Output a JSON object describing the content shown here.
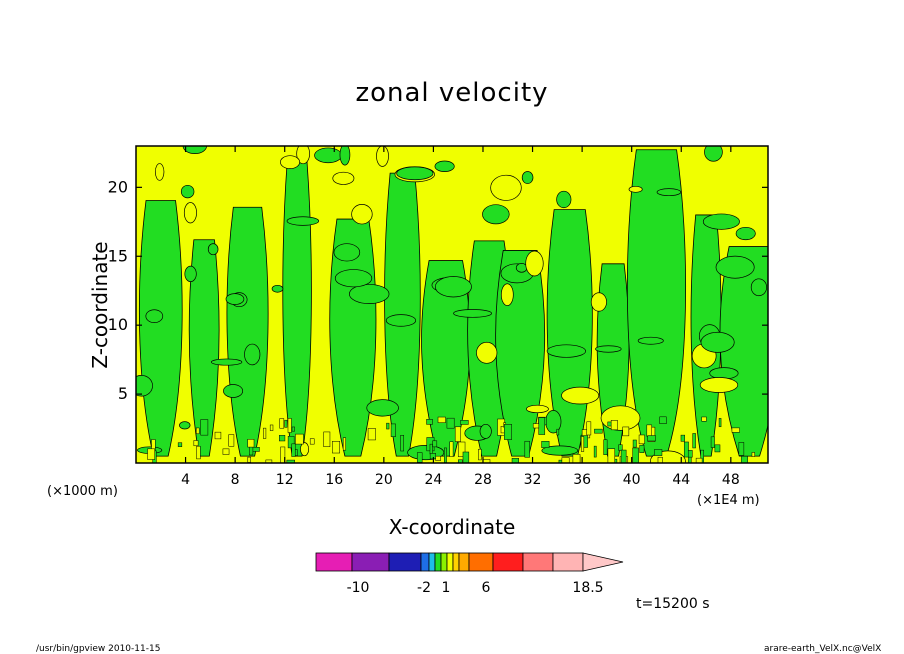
{
  "chart_data": {
    "type": "heatmap",
    "title": "zonal velocity",
    "xlabel": "X-coordinate",
    "ylabel": "Z-coordinate",
    "x_unit_left": "(×1000 m)",
    "x_unit_right": "(×1E4 m)",
    "xlim": [
      0,
      51
    ],
    "ylim": [
      0,
      23
    ],
    "x_ticks": [
      "4",
      "8",
      "12",
      "16",
      "20",
      "24",
      "28",
      "32",
      "36",
      "40",
      "44",
      "48"
    ],
    "y_ticks": [
      "5",
      "10",
      "15",
      "20"
    ],
    "x_tick_values": [
      4,
      8,
      12,
      16,
      20,
      24,
      28,
      32,
      36,
      40,
      44,
      48
    ],
    "y_tick_values": [
      5,
      10,
      15,
      20
    ],
    "dominant_colors": {
      "yellow_region": "#f0ff00",
      "green_region": "#22dd22"
    },
    "colorbar": {
      "colors": [
        "#e61eb4",
        "#8a1eb4",
        "#1e1eb4",
        "#1e6ee6",
        "#1ebee6",
        "#22dd22",
        "#8cf000",
        "#f0ff00",
        "#ffd200",
        "#ffaa00",
        "#ff6e00",
        "#ff1e1e",
        "#ff7878",
        "#ffb4b4",
        "#ffc8c8"
      ],
      "labels": [
        "-10",
        "-2",
        "1",
        "6",
        "18.5"
      ],
      "label_values": [
        -10,
        -2,
        1,
        6,
        18.5
      ]
    },
    "time_label": "t=15200 s"
  },
  "footer": {
    "left": "/usr/bin/gpview   2010-11-15",
    "right": "arare-earth_VelX.nc@VelX"
  }
}
